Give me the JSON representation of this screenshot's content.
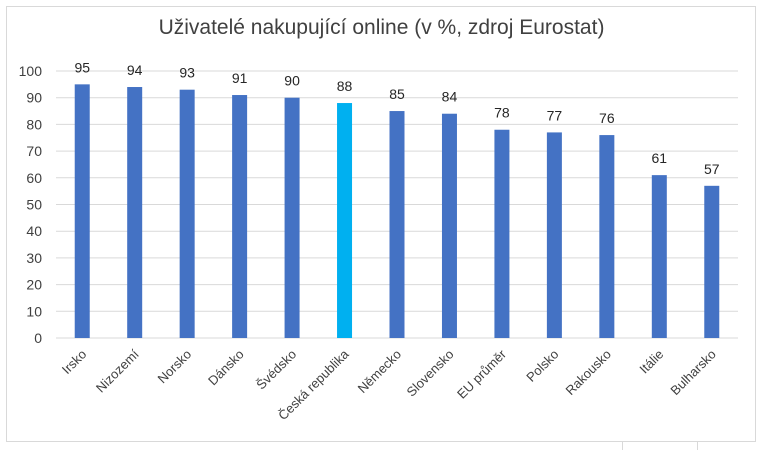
{
  "chart_data": {
    "type": "bar",
    "title": "Uživatelé nakupující online (v %, zdroj Eurostat)",
    "xlabel": "",
    "ylabel": "",
    "ylim": [
      0,
      100
    ],
    "yticks": [
      0,
      10,
      20,
      30,
      40,
      50,
      60,
      70,
      80,
      90,
      100
    ],
    "grid": true,
    "legend": "none",
    "categories": [
      "Irsko",
      "Nizozemí",
      "Norsko",
      "Dánsko",
      "Švédsko",
      "Česká republika",
      "Německo",
      "Slovensko",
      "EU průměr",
      "Polsko",
      "Rakousko",
      "Itálie",
      "Bulharsko"
    ],
    "values": [
      95,
      94,
      93,
      91,
      90,
      88,
      85,
      84,
      78,
      77,
      76,
      61,
      57
    ],
    "colors": {
      "bar": "#4472c4",
      "highlight": "#00b0f0",
      "grid": "#d9d9d9"
    },
    "highlight_category": "Česká republika"
  }
}
